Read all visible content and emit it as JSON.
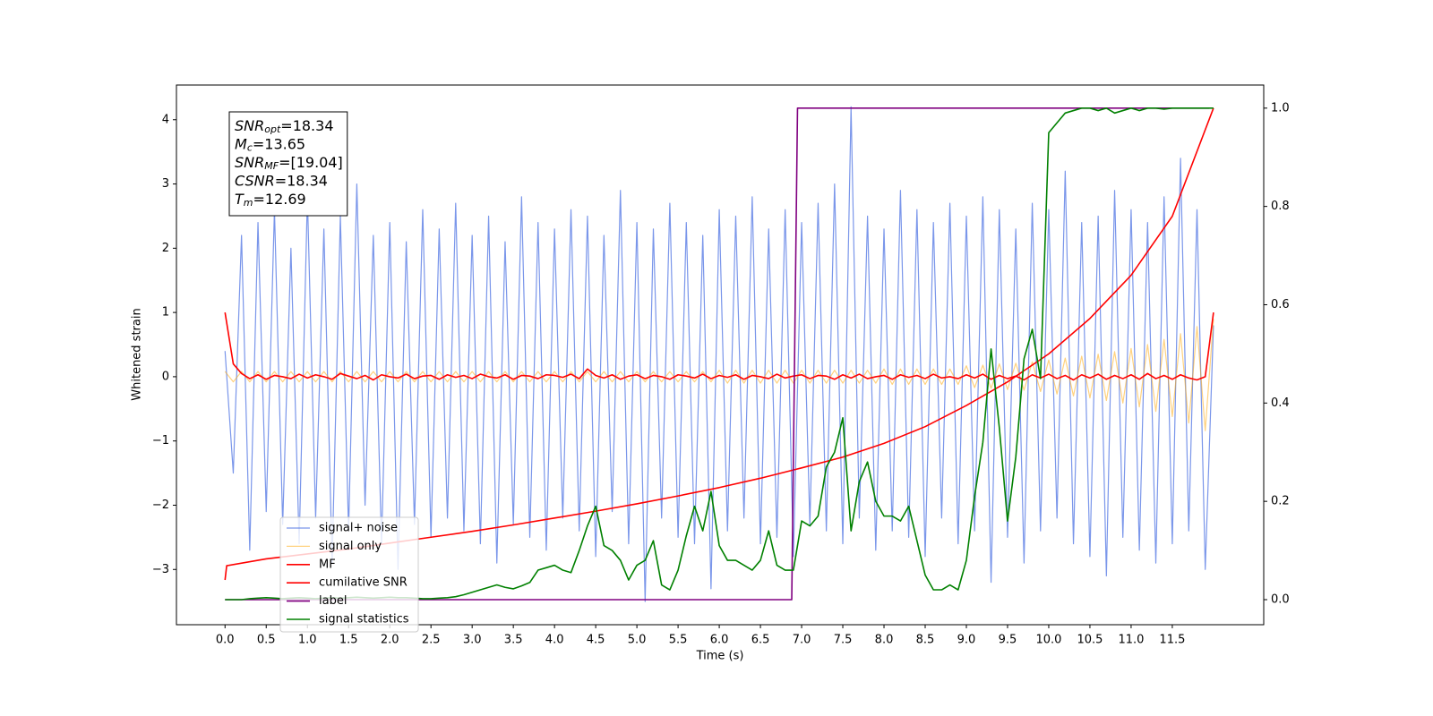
{
  "chart_data": {
    "type": "line",
    "xlabel": "Time (s)",
    "ylabel": "Whitened strain",
    "annotation": [
      {
        "name": "SNR",
        "sub": "opt",
        "text": "=18.34"
      },
      {
        "name": "M",
        "sub": "c",
        "text": "=13.65"
      },
      {
        "name": "SNR",
        "sub": "MF",
        "text": "=[19.04]"
      },
      {
        "name": "CSNR",
        "text": "=18.34"
      },
      {
        "name": "T",
        "sub": "m",
        "text": "=12.69"
      }
    ],
    "legend": "lower left",
    "xlim": [
      -0.59,
      12.61
    ],
    "ylim": [
      -3.86,
      4.54
    ],
    "y2lim": [
      -0.051,
      1.047
    ],
    "xticks": [
      {
        "value": 0,
        "label": "0.0"
      },
      0.5,
      {
        "value": 1,
        "label": "1.0"
      },
      1.5,
      {
        "value": 2,
        "label": "2.0"
      },
      2.5,
      {
        "value": 3,
        "label": "3.0"
      },
      3.5,
      {
        "value": 4,
        "label": "4.0"
      },
      4.5,
      {
        "value": 5,
        "label": "5.0"
      },
      5.5,
      {
        "value": 6,
        "label": "6.0"
      },
      6.5,
      {
        "value": 7,
        "label": "7.0"
      },
      7.5,
      {
        "value": 8,
        "label": "8.0"
      },
      8.5,
      {
        "value": 9,
        "label": "9.0"
      },
      9.5,
      {
        "value": 10,
        "label": "10.0"
      },
      10.5,
      {
        "value": 11,
        "label": "11.0"
      },
      11.5
    ],
    "yticks": [
      {
        "value": -3,
        "label": "−3"
      },
      {
        "value": -2,
        "label": "−2"
      },
      {
        "value": -1,
        "label": "−1"
      },
      0,
      1,
      2,
      3,
      4
    ],
    "y2ticks": [
      {
        "value": 0,
        "label": "0.0"
      },
      0.2,
      0.4,
      0.6,
      0.8,
      {
        "value": 1,
        "label": "1.0"
      }
    ],
    "x": [
      0,
      0.1,
      0.2,
      0.3,
      0.4,
      0.5,
      0.6,
      0.7,
      0.8,
      0.9,
      1,
      1.1,
      1.2,
      1.3,
      1.4,
      1.5,
      1.6,
      1.7,
      1.8,
      1.9,
      2,
      2.1,
      2.2,
      2.3,
      2.4,
      2.5,
      2.6,
      2.7,
      2.8,
      2.9,
      3,
      3.1,
      3.2,
      3.3,
      3.4,
      3.5,
      3.6,
      3.7,
      3.8,
      3.9,
      4,
      4.1,
      4.2,
      4.3,
      4.4,
      4.5,
      4.6,
      4.7,
      4.8,
      4.9,
      5,
      5.1,
      5.2,
      5.3,
      5.4,
      5.5,
      5.6,
      5.7,
      5.8,
      5.9,
      6,
      6.1,
      6.2,
      6.3,
      6.4,
      6.5,
      6.6,
      6.7,
      6.8,
      6.9,
      7,
      7.1,
      7.2,
      7.3,
      7.4,
      7.5,
      7.6,
      7.7,
      7.8,
      7.9,
      8,
      8.1,
      8.2,
      8.3,
      8.4,
      8.5,
      8.6,
      8.7,
      8.8,
      8.9,
      9,
      9.1,
      9.2,
      9.3,
      9.4,
      9.5,
      9.6,
      9.7,
      9.8,
      9.9,
      10,
      10.1,
      10.2,
      10.3,
      10.4,
      10.5,
      10.6,
      10.7,
      10.8,
      10.9,
      11,
      11.1,
      11.2,
      11.3,
      11.4,
      11.5,
      11.6,
      11.7,
      11.8,
      11.9,
      12
    ],
    "series": [
      {
        "name": "signal+ noise",
        "color": "royalblue",
        "alpha": 0.7,
        "width": 1.2,
        "values": [
          0.4,
          -1.5,
          2.2,
          -2.7,
          2.4,
          -2.1,
          2.6,
          -2.3,
          2.0,
          -2.6,
          2.8,
          -2.2,
          2.3,
          -2.9,
          2.5,
          -2.4,
          3.0,
          -2.0,
          2.2,
          -2.6,
          2.4,
          -3.0,
          2.1,
          -2.3,
          2.6,
          -2.5,
          2.3,
          -2.2,
          2.7,
          -2.4,
          2.2,
          -2.6,
          2.5,
          -2.9,
          2.1,
          -2.3,
          2.8,
          -2.5,
          2.4,
          -2.7,
          2.3,
          -2.2,
          2.6,
          -2.4,
          2.5,
          -2.8,
          2.2,
          -2.1,
          2.9,
          -2.6,
          2.4,
          -3.5,
          2.3,
          -2.2,
          2.7,
          -2.5,
          2.4,
          -2.6,
          2.2,
          -3.3,
          2.6,
          -2.4,
          2.5,
          -2.2,
          2.8,
          -2.6,
          2.3,
          -2.5,
          2.6,
          -2.8,
          2.4,
          -2.3,
          2.7,
          -2.4,
          3.0,
          -2.6,
          4.2,
          -2.2,
          2.5,
          -2.7,
          2.3,
          -2.4,
          2.9,
          -2.5,
          2.6,
          -2.8,
          2.4,
          -2.2,
          2.7,
          -2.6,
          2.5,
          -2.4,
          2.8,
          -3.2,
          2.6,
          -2.5,
          2.3,
          -2.9,
          2.7,
          -2.4,
          2.6,
          -2.2,
          3.2,
          -2.6,
          2.4,
          -2.8,
          2.5,
          -3.1,
          2.9,
          -2.5,
          2.6,
          -2.7,
          2.4,
          -2.9,
          2.8,
          -2.6,
          3.4,
          -2.4,
          2.6,
          -3.0,
          0.8
        ]
      },
      {
        "name": "signal only",
        "color": "orange",
        "alpha": 0.5,
        "width": 1.2,
        "values": [
          0.08,
          -0.08,
          0.08,
          -0.08,
          0.08,
          -0.08,
          0.08,
          -0.08,
          0.08,
          -0.08,
          0.08,
          -0.08,
          0.08,
          -0.08,
          0.08,
          -0.08,
          0.08,
          -0.08,
          0.08,
          -0.08,
          0.08,
          -0.08,
          0.08,
          -0.08,
          0.08,
          -0.08,
          0.08,
          -0.08,
          0.08,
          -0.08,
          0.08,
          -0.08,
          0.08,
          -0.08,
          0.08,
          -0.08,
          0.08,
          -0.08,
          0.08,
          -0.08,
          0.08,
          -0.08,
          0.08,
          -0.08,
          0.08,
          -0.08,
          0.08,
          -0.08,
          0.08,
          -0.08,
          0.08,
          -0.08,
          0.08,
          -0.08,
          0.08,
          -0.08,
          0.08,
          -0.08,
          0.08,
          -0.08,
          0.1,
          -0.1,
          0.1,
          -0.1,
          0.1,
          -0.1,
          0.1,
          -0.1,
          0.1,
          -0.1,
          0.1,
          -0.1,
          0.1,
          -0.1,
          0.1,
          -0.1,
          0.1,
          -0.1,
          0.1,
          -0.1,
          0.12,
          -0.12,
          0.12,
          -0.12,
          0.12,
          -0.12,
          0.12,
          -0.12,
          0.12,
          -0.12,
          0.17,
          -0.17,
          0.18,
          -0.18,
          0.2,
          -0.2,
          0.21,
          -0.21,
          0.23,
          -0.23,
          0.26,
          -0.27,
          0.29,
          -0.3,
          0.32,
          -0.33,
          0.35,
          -0.37,
          0.39,
          -0.41,
          0.44,
          -0.47,
          0.5,
          -0.54,
          0.58,
          -0.62,
          0.67,
          -0.72,
          0.78,
          -0.84,
          0.9
        ]
      },
      {
        "name": "MF",
        "color": "red",
        "alpha": 1,
        "width": 1.6,
        "values": [
          1.0,
          0.2,
          0.05,
          -0.03,
          0.03,
          -0.04,
          0.02,
          0.0,
          -0.03,
          0.04,
          -0.02,
          0.03,
          0.0,
          -0.04,
          0.05,
          0.01,
          -0.03,
          0.02,
          -0.05,
          0.03,
          0.0,
          -0.02,
          0.04,
          -0.03,
          0.01,
          0.02,
          -0.04,
          0.03,
          -0.01,
          0.02,
          -0.03,
          0.04,
          0.0,
          -0.02,
          0.03,
          -0.04,
          0.02,
          0.01,
          -0.03,
          0.03,
          0.02,
          -0.01,
          0.04,
          -0.03,
          0.12,
          0.02,
          -0.02,
          0.03,
          -0.04,
          0.01,
          0.03,
          -0.03,
          0.02,
          0.0,
          -0.04,
          0.03,
          0.01,
          -0.02,
          0.04,
          -0.03,
          0.02,
          -0.01,
          0.03,
          -0.04,
          0.02,
          0.0,
          -0.03,
          0.04,
          -0.02,
          0.01,
          0.03,
          -0.03,
          0.02,
          0.01,
          -0.04,
          0.03,
          -0.02,
          0.04,
          -0.03,
          0.0,
          0.02,
          -0.04,
          0.03,
          -0.01,
          0.02,
          -0.03,
          0.04,
          -0.02,
          0.0,
          -0.03,
          0.03,
          -0.02,
          0.04,
          -0.04,
          0.02,
          -0.03,
          0.01,
          -0.05,
          0.03,
          -0.02,
          0.04,
          -0.03,
          0.02,
          -0.05,
          0.03,
          -0.02,
          0.04,
          -0.04,
          0.02,
          -0.03,
          0.03,
          -0.04,
          0.05,
          -0.03,
          0.02,
          -0.04,
          0.03,
          -0.02,
          -0.05,
          0.0,
          1.0
        ]
      },
      {
        "name": "cumilative SNR",
        "color": "red",
        "alpha": 1,
        "width": 1.6,
        "axis": "y2",
        "x": [
          0,
          0.02,
          0.5,
          1,
          1.5,
          2,
          2.5,
          3,
          3.5,
          4,
          4.5,
          5,
          5.5,
          6,
          6.5,
          7,
          7.5,
          8,
          8.5,
          9,
          9.5,
          10,
          10.5,
          11,
          11.5,
          12
        ],
        "values": [
          0.04,
          0.069,
          0.083,
          0.093,
          0.103,
          0.115,
          0.127,
          0.139,
          0.152,
          0.166,
          0.18,
          0.195,
          0.211,
          0.228,
          0.247,
          0.268,
          0.29,
          0.318,
          0.352,
          0.395,
          0.443,
          0.5,
          0.572,
          0.66,
          0.78,
          1.0
        ]
      },
      {
        "name": "label",
        "color": "purple",
        "alpha": 1,
        "width": 1.6,
        "axis": "y2",
        "x": [
          0,
          6.88,
          6.95,
          11.95
        ],
        "values": [
          0,
          0,
          1,
          1
        ]
      },
      {
        "name": "signal statistics",
        "color": "green",
        "alpha": 1,
        "width": 1.6,
        "axis": "y2",
        "values": [
          0.0,
          0.0,
          0.0,
          0.002,
          0.003,
          0.004,
          0.003,
          0.002,
          0.003,
          0.004,
          0.003,
          0.002,
          0.003,
          0.004,
          0.003,
          0.004,
          0.005,
          0.004,
          0.003,
          0.004,
          0.005,
          0.004,
          0.004,
          0.003,
          0.002,
          0.002,
          0.003,
          0.004,
          0.006,
          0.01,
          0.015,
          0.02,
          0.025,
          0.03,
          0.025,
          0.022,
          0.028,
          0.035,
          0.06,
          0.065,
          0.07,
          0.06,
          0.055,
          0.1,
          0.15,
          0.19,
          0.11,
          0.1,
          0.08,
          0.04,
          0.07,
          0.08,
          0.12,
          0.03,
          0.02,
          0.06,
          0.13,
          0.19,
          0.14,
          0.22,
          0.11,
          0.08,
          0.08,
          0.07,
          0.06,
          0.08,
          0.14,
          0.07,
          0.06,
          0.06,
          0.16,
          0.15,
          0.17,
          0.27,
          0.3,
          0.37,
          0.14,
          0.24,
          0.28,
          0.2,
          0.17,
          0.17,
          0.16,
          0.19,
          0.12,
          0.05,
          0.02,
          0.02,
          0.03,
          0.02,
          0.08,
          0.21,
          0.32,
          0.51,
          0.35,
          0.16,
          0.29,
          0.49,
          0.55,
          0.45,
          0.95,
          0.97,
          0.99,
          0.995,
          1.0,
          1.0,
          0.995,
          1.0,
          0.99,
          0.995,
          1.0,
          0.995,
          1.0,
          1.0,
          0.998,
          1.0,
          1.0,
          1.0,
          1.0,
          1.0,
          1.0
        ]
      }
    ]
  }
}
